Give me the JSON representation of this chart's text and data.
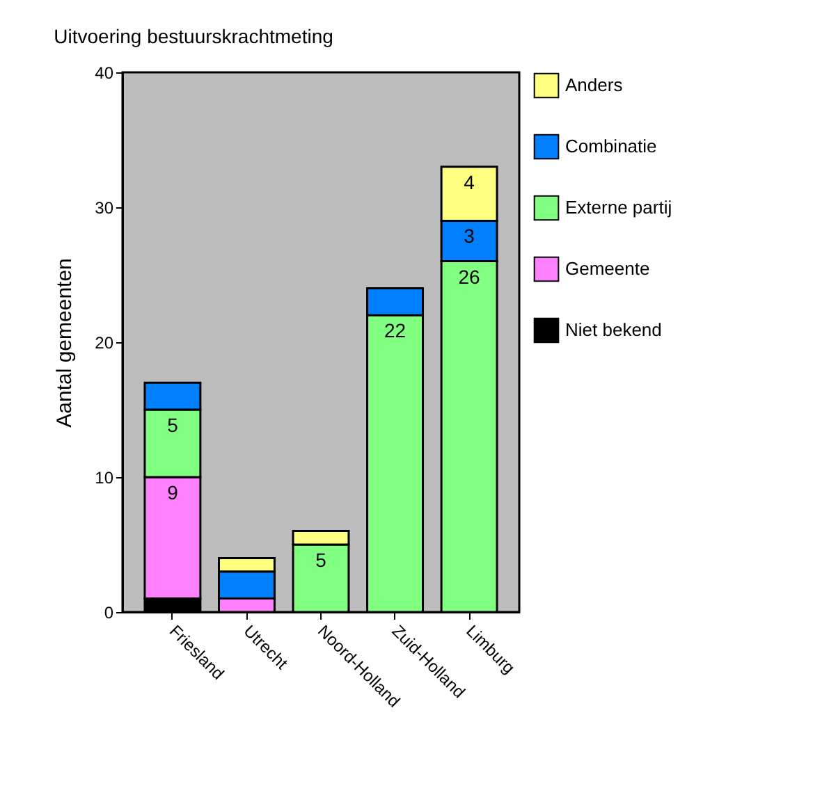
{
  "chart_data": {
    "type": "bar",
    "title": "Uitvoering bestuurskrachtmeting",
    "ylabel": "Aantal gemeenten",
    "categories": [
      "Friesland",
      "Utrecht",
      "Noord-Holland",
      "Zuid-Holland",
      "Limburg"
    ],
    "stacked": true,
    "legend": "right",
    "ylim": [
      0,
      40
    ],
    "yticks": [
      0,
      10,
      20,
      30,
      40
    ],
    "series": [
      {
        "name": "Niet bekend",
        "color": "#000000",
        "values": [
          1,
          0,
          0,
          0,
          0
        ],
        "value_labels": [
          null,
          null,
          null,
          null,
          null
        ]
      },
      {
        "name": "Gemeente",
        "color": "#ff80ff",
        "values": [
          9,
          1,
          0,
          0,
          0
        ],
        "value_labels": [
          "9",
          null,
          null,
          null,
          null
        ]
      },
      {
        "name": "Externe partij",
        "color": "#80ff80",
        "values": [
          5,
          0,
          5,
          22,
          26
        ],
        "value_labels": [
          "5",
          null,
          "5",
          "22",
          "26"
        ]
      },
      {
        "name": "Combinatie",
        "color": "#0080ff",
        "values": [
          2,
          2,
          0,
          2,
          3
        ],
        "value_labels": [
          null,
          null,
          null,
          null,
          "3"
        ]
      },
      {
        "name": "Anders",
        "color": "#ffff80",
        "values": [
          0,
          1,
          1,
          0,
          4
        ],
        "value_labels": [
          null,
          null,
          null,
          null,
          "4"
        ]
      }
    ]
  }
}
